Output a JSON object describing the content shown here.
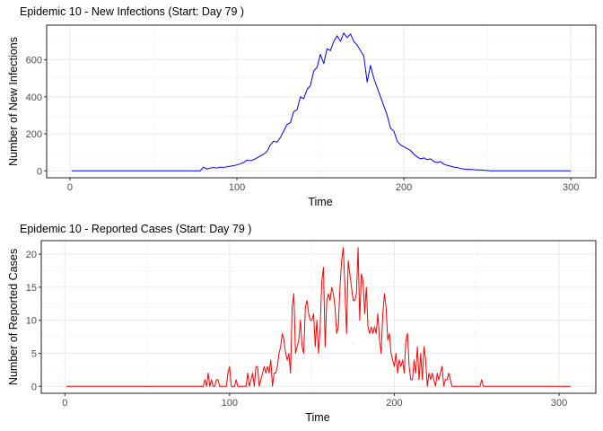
{
  "chart_data": [
    {
      "type": "line",
      "title": "Epidemic 10 - New Infections (Start: Day 79 )",
      "xlabel": "Time",
      "ylabel": "Number of New Infections",
      "xlim": [
        1,
        300
      ],
      "ylim": [
        0,
        750
      ],
      "xticks": [
        0,
        100,
        200,
        300
      ],
      "yticks": [
        0,
        200,
        400,
        600
      ],
      "grid": true,
      "color": "#0000FF",
      "points": [
        [
          1,
          0
        ],
        [
          78,
          0
        ],
        [
          80,
          20
        ],
        [
          82,
          10
        ],
        [
          84,
          15
        ],
        [
          86,
          18
        ],
        [
          88,
          15
        ],
        [
          90,
          20
        ],
        [
          92,
          18
        ],
        [
          94,
          22
        ],
        [
          96,
          25
        ],
        [
          98,
          28
        ],
        [
          100,
          32
        ],
        [
          102,
          38
        ],
        [
          104,
          45
        ],
        [
          106,
          58
        ],
        [
          108,
          55
        ],
        [
          110,
          60
        ],
        [
          112,
          70
        ],
        [
          114,
          80
        ],
        [
          116,
          90
        ],
        [
          118,
          105
        ],
        [
          120,
          140
        ],
        [
          122,
          160
        ],
        [
          124,
          155
        ],
        [
          126,
          180
        ],
        [
          128,
          215
        ],
        [
          130,
          250
        ],
        [
          132,
          260
        ],
        [
          134,
          320
        ],
        [
          136,
          330
        ],
        [
          138,
          400
        ],
        [
          140,
          390
        ],
        [
          142,
          440
        ],
        [
          144,
          460
        ],
        [
          146,
          540
        ],
        [
          148,
          560
        ],
        [
          150,
          630
        ],
        [
          152,
          580
        ],
        [
          154,
          660
        ],
        [
          156,
          650
        ],
        [
          158,
          700
        ],
        [
          160,
          730
        ],
        [
          162,
          700
        ],
        [
          164,
          745
        ],
        [
          166,
          720
        ],
        [
          168,
          740
        ],
        [
          170,
          700
        ],
        [
          172,
          680
        ],
        [
          174,
          650
        ],
        [
          176,
          620
        ],
        [
          178,
          480
        ],
        [
          180,
          570
        ],
        [
          182,
          500
        ],
        [
          184,
          450
        ],
        [
          186,
          400
        ],
        [
          188,
          350
        ],
        [
          190,
          300
        ],
        [
          192,
          230
        ],
        [
          194,
          215
        ],
        [
          196,
          160
        ],
        [
          198,
          140
        ],
        [
          200,
          130
        ],
        [
          202,
          120
        ],
        [
          204,
          110
        ],
        [
          206,
          90
        ],
        [
          208,
          75
        ],
        [
          210,
          65
        ],
        [
          212,
          70
        ],
        [
          214,
          60
        ],
        [
          216,
          65
        ],
        [
          218,
          50
        ],
        [
          220,
          45
        ],
        [
          222,
          50
        ],
        [
          224,
          35
        ],
        [
          226,
          30
        ],
        [
          228,
          25
        ],
        [
          230,
          20
        ],
        [
          232,
          18
        ],
        [
          234,
          12
        ],
        [
          236,
          10
        ],
        [
          238,
          8
        ],
        [
          240,
          8
        ],
        [
          242,
          6
        ],
        [
          244,
          5
        ],
        [
          246,
          5
        ],
        [
          248,
          3
        ],
        [
          250,
          2
        ],
        [
          252,
          0
        ],
        [
          300,
          0
        ]
      ]
    },
    {
      "type": "line",
      "title": "Epidemic 10 - Reported Cases (Start: Day 79 )",
      "xlabel": "Time",
      "ylabel": "Number of Reported Cases",
      "xlim": [
        1,
        307
      ],
      "ylim": [
        0,
        21
      ],
      "xticks": [
        0,
        100,
        200,
        300
      ],
      "yticks": [
        0,
        5,
        10,
        15,
        20
      ],
      "grid": true,
      "color": "#FF0000",
      "points": [
        [
          1,
          0
        ],
        [
          84,
          0
        ],
        [
          85,
          1
        ],
        [
          86,
          0
        ],
        [
          87,
          2
        ],
        [
          88,
          0
        ],
        [
          89,
          1
        ],
        [
          90,
          0
        ],
        [
          91,
          0
        ],
        [
          92,
          1
        ],
        [
          93,
          1
        ],
        [
          94,
          0
        ],
        [
          98,
          0
        ],
        [
          99,
          2
        ],
        [
          100,
          3
        ],
        [
          101,
          0
        ],
        [
          103,
          0
        ],
        [
          104,
          1
        ],
        [
          105,
          0
        ],
        [
          110,
          0
        ],
        [
          111,
          2
        ],
        [
          112,
          0
        ],
        [
          113,
          1
        ],
        [
          114,
          2
        ],
        [
          115,
          0
        ],
        [
          116,
          3
        ],
        [
          117,
          3
        ],
        [
          118,
          0
        ],
        [
          119,
          1
        ],
        [
          120,
          2
        ],
        [
          121,
          3
        ],
        [
          122,
          2
        ],
        [
          123,
          3
        ],
        [
          124,
          2
        ],
        [
          125,
          4
        ],
        [
          126,
          0
        ],
        [
          127,
          2
        ],
        [
          128,
          2
        ],
        [
          129,
          3
        ],
        [
          130,
          5
        ],
        [
          131,
          6
        ],
        [
          132,
          8
        ],
        [
          133,
          7
        ],
        [
          134,
          5
        ],
        [
          135,
          4
        ],
        [
          136,
          5
        ],
        [
          137,
          2
        ],
        [
          138,
          12
        ],
        [
          139,
          14
        ],
        [
          140,
          5
        ],
        [
          141,
          6
        ],
        [
          142,
          7
        ],
        [
          143,
          10
        ],
        [
          144,
          6
        ],
        [
          145,
          5
        ],
        [
          146,
          12
        ],
        [
          147,
          13
        ],
        [
          148,
          11
        ],
        [
          149,
          10
        ],
        [
          150,
          10
        ],
        [
          151,
          11
        ],
        [
          152,
          6
        ],
        [
          153,
          10
        ],
        [
          154,
          5
        ],
        [
          155,
          9
        ],
        [
          156,
          16
        ],
        [
          157,
          18
        ],
        [
          158,
          6
        ],
        [
          159,
          13
        ],
        [
          160,
          14
        ],
        [
          161,
          13
        ],
        [
          162,
          15
        ],
        [
          163,
          14
        ],
        [
          164,
          12
        ],
        [
          165,
          8
        ],
        [
          166,
          9
        ],
        [
          167,
          15
        ],
        [
          168,
          19
        ],
        [
          169,
          21
        ],
        [
          170,
          15
        ],
        [
          171,
          8
        ],
        [
          172,
          19
        ],
        [
          173,
          17
        ],
        [
          174,
          15
        ],
        [
          175,
          13
        ],
        [
          176,
          13
        ],
        [
          177,
          14
        ],
        [
          178,
          21
        ],
        [
          179,
          10
        ],
        [
          180,
          17
        ],
        [
          181,
          16
        ],
        [
          182,
          11
        ],
        [
          183,
          15
        ],
        [
          184,
          9
        ],
        [
          185,
          8
        ],
        [
          186,
          9
        ],
        [
          187,
          8
        ],
        [
          188,
          9
        ],
        [
          189,
          8
        ],
        [
          190,
          11
        ],
        [
          191,
          7
        ],
        [
          192,
          5
        ],
        [
          193,
          11
        ],
        [
          194,
          14
        ],
        [
          195,
          12
        ],
        [
          196,
          7
        ],
        [
          197,
          8
        ],
        [
          198,
          5
        ],
        [
          199,
          4
        ],
        [
          200,
          3
        ],
        [
          201,
          5
        ],
        [
          202,
          2
        ],
        [
          203,
          4
        ],
        [
          204,
          3
        ],
        [
          205,
          4
        ],
        [
          206,
          2
        ],
        [
          207,
          7
        ],
        [
          208,
          8
        ],
        [
          209,
          3
        ],
        [
          210,
          1
        ],
        [
          211,
          1
        ],
        [
          212,
          4
        ],
        [
          213,
          2
        ],
        [
          214,
          6
        ],
        [
          215,
          1
        ],
        [
          216,
          5
        ],
        [
          217,
          1
        ],
        [
          218,
          6
        ],
        [
          219,
          4
        ],
        [
          220,
          0
        ],
        [
          221,
          2
        ],
        [
          222,
          1
        ],
        [
          223,
          2
        ],
        [
          224,
          1
        ],
        [
          225,
          0
        ],
        [
          226,
          2
        ],
        [
          227,
          1
        ],
        [
          228,
          2
        ],
        [
          229,
          3
        ],
        [
          230,
          0
        ],
        [
          231,
          1
        ],
        [
          232,
          1
        ],
        [
          233,
          2
        ],
        [
          234,
          1
        ],
        [
          235,
          0
        ],
        [
          252,
          0
        ],
        [
          253,
          1
        ],
        [
          254,
          0
        ],
        [
          307,
          0
        ]
      ]
    }
  ]
}
